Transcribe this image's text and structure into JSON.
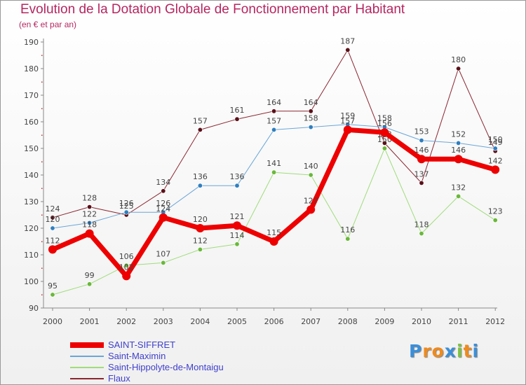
{
  "title": "Evolution de la Dotation Globale de Fonctionnement par Habitant",
  "subtitle": "(en € et par an)",
  "brand": {
    "letters": [
      "P",
      "r",
      "o",
      "x",
      "i",
      "t",
      "i"
    ],
    "colors": [
      "#3a8fd9",
      "#f08a1c",
      "#f08a1c",
      "#3a8fd9",
      "#7cc242",
      "#f08a1c",
      "#3a8fd9"
    ]
  },
  "chart_data": {
    "type": "line",
    "title": "Evolution de la Dotation Globale de Fonctionnement par Habitant",
    "ylabel": "(en € et par an)",
    "xlabel": "",
    "x": [
      2000,
      2001,
      2002,
      2003,
      2004,
      2005,
      2006,
      2007,
      2008,
      2009,
      2010,
      2011,
      2012
    ],
    "x_tick_labels": [
      "2000",
      "2001",
      "2002",
      "2003",
      "2004",
      "2005",
      "2006",
      "2007",
      "2008",
      "2009",
      "2010",
      "2011",
      "2012"
    ],
    "ylim": [
      90,
      190
    ],
    "y_ticks": [
      90,
      100,
      110,
      120,
      130,
      140,
      150,
      160,
      170,
      180,
      190
    ],
    "grid": "none",
    "legend_position": "bottom-left",
    "series": [
      {
        "name": "Flaux",
        "color": "#8b2530",
        "marker": "#5a1018",
        "width": 1,
        "values": [
          124,
          128,
          125,
          134,
          157,
          161,
          164,
          164,
          187,
          152,
          137,
          180,
          149
        ]
      },
      {
        "name": "Saint-Hippolyte-de-Montaigu",
        "color": "#9fdc7a",
        "marker": "#6ab83a",
        "width": 1,
        "values": [
          95,
          99,
          106,
          107,
          112,
          114,
          141,
          140,
          116,
          150,
          118,
          132,
          123
        ]
      },
      {
        "name": "Saint-Maximin",
        "color": "#6aa6d8",
        "marker": "#2f7fc0",
        "width": 1,
        "values": [
          120,
          122,
          126,
          126,
          136,
          136,
          157,
          158,
          159,
          158,
          153,
          152,
          150
        ]
      },
      {
        "name": "SAINT-SIFFRET",
        "color": "#ee0000",
        "marker": "#ee0000",
        "width": 7,
        "values": [
          112,
          118,
          102,
          124,
          120,
          121,
          115,
          127,
          157,
          156,
          146,
          146,
          142
        ]
      }
    ],
    "legend_order": [
      "SAINT-SIFFRET",
      "Saint-Maximin",
      "Saint-Hippolyte-de-Montaigu",
      "Flaux"
    ]
  }
}
